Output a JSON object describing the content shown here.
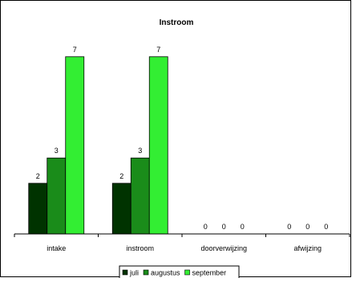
{
  "chart_data": {
    "type": "bar",
    "title": "Instroom",
    "categories": [
      "intake",
      "instroom",
      "doorverwijzing",
      "afwijzing"
    ],
    "series": [
      {
        "name": "juli",
        "values": [
          2,
          2,
          0,
          0
        ],
        "color": "#003300"
      },
      {
        "name": "augustus",
        "values": [
          3,
          3,
          0,
          0
        ],
        "color": "#1a8c1a"
      },
      {
        "name": "september",
        "values": [
          7,
          7,
          0,
          0
        ],
        "color": "#33ee33"
      }
    ],
    "ylim": [
      0,
      7.5
    ],
    "xlabel": "",
    "ylabel": "",
    "grid": false,
    "legend": "bottom",
    "data_labels": true
  }
}
